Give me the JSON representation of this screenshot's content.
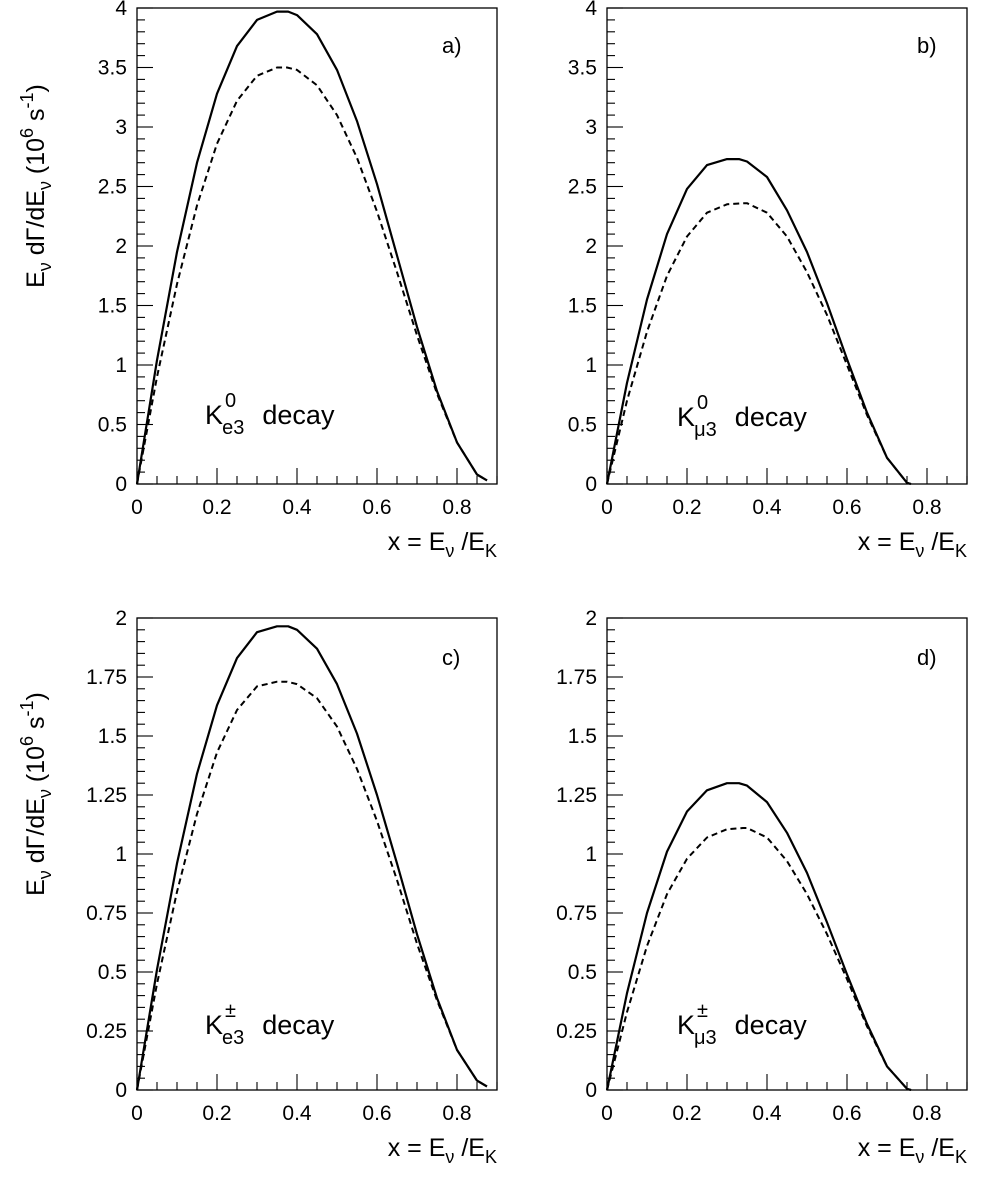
{
  "chart_data": [
    {
      "type": "line",
      "panel_label": "a)",
      "decay": {
        "particle": "K",
        "superscript": "0",
        "subscript": "e3",
        "word": "decay"
      },
      "xlabel": {
        "prefix": "x = E",
        "sub1": "ν",
        "middle": " /E",
        "sub2": "K"
      },
      "ylabel": {
        "prefix": "E",
        "sub1": "ν",
        "middle": " dΓ/dE",
        "sub2": "ν",
        "unit": "(10",
        "unit_sup": "6",
        "unit_mid": " s",
        "unit_sup2": "-1",
        "unit_end": ")"
      },
      "xlim": [
        0,
        0.9
      ],
      "ylim": [
        0,
        4
      ],
      "x_ticks": [
        "0",
        "0.2",
        "0.4",
        "0.6",
        "0.8"
      ],
      "y_ticks": [
        "0",
        "0.5",
        "1",
        "1.5",
        "2",
        "2.5",
        "3",
        "3.5",
        "4"
      ],
      "series": [
        {
          "style": "solid",
          "x": [
            0,
            0.05,
            0.1,
            0.15,
            0.2,
            0.25,
            0.3,
            0.35,
            0.378,
            0.4,
            0.45,
            0.5,
            0.55,
            0.6,
            0.65,
            0.7,
            0.75,
            0.8,
            0.85,
            0.875
          ],
          "y": [
            0,
            1.04,
            1.95,
            2.7,
            3.28,
            3.68,
            3.9,
            3.97,
            3.97,
            3.94,
            3.78,
            3.48,
            3.05,
            2.52,
            1.92,
            1.32,
            0.78,
            0.35,
            0.08,
            0.03
          ]
        },
        {
          "style": "dashed",
          "x": [
            0,
            0.05,
            0.1,
            0.15,
            0.2,
            0.25,
            0.3,
            0.35,
            0.375,
            0.4,
            0.45,
            0.5,
            0.55,
            0.6,
            0.65,
            0.7,
            0.75,
            0.8,
            0.85,
            0.875
          ],
          "y": [
            0,
            0.9,
            1.68,
            2.34,
            2.86,
            3.22,
            3.43,
            3.5,
            3.5,
            3.48,
            3.35,
            3.1,
            2.74,
            2.29,
            1.78,
            1.25,
            0.76,
            0.35,
            0.08,
            0.03
          ]
        }
      ]
    },
    {
      "type": "line",
      "panel_label": "b)",
      "decay": {
        "particle": "K",
        "superscript": "0",
        "subscript": "μ3",
        "word": "decay"
      },
      "xlabel": {
        "prefix": "x = E",
        "sub1": "ν",
        "middle": " /E",
        "sub2": "K"
      },
      "xlim": [
        0,
        0.9
      ],
      "ylim": [
        0,
        4
      ],
      "x_ticks": [
        "0",
        "0.2",
        "0.4",
        "0.6",
        "0.8"
      ],
      "y_ticks": [
        "0",
        "0.5",
        "1",
        "1.5",
        "2",
        "2.5",
        "3",
        "3.5",
        "4"
      ],
      "series": [
        {
          "style": "solid",
          "x": [
            0,
            0.05,
            0.1,
            0.15,
            0.2,
            0.25,
            0.3,
            0.33,
            0.35,
            0.4,
            0.45,
            0.5,
            0.55,
            0.6,
            0.65,
            0.7,
            0.75,
            0.76
          ],
          "y": [
            0,
            0.85,
            1.55,
            2.1,
            2.48,
            2.68,
            2.73,
            2.73,
            2.71,
            2.58,
            2.3,
            1.95,
            1.52,
            1.05,
            0.6,
            0.22,
            0.01,
            0
          ]
        },
        {
          "style": "dashed",
          "x": [
            0,
            0.05,
            0.1,
            0.15,
            0.2,
            0.25,
            0.3,
            0.34,
            0.35,
            0.4,
            0.45,
            0.5,
            0.55,
            0.6,
            0.65,
            0.7,
            0.75,
            0.76
          ],
          "y": [
            0,
            0.7,
            1.28,
            1.75,
            2.08,
            2.28,
            2.35,
            2.36,
            2.36,
            2.28,
            2.08,
            1.78,
            1.42,
            1.0,
            0.58,
            0.22,
            0.01,
            0
          ]
        }
      ]
    },
    {
      "type": "line",
      "panel_label": "c)",
      "decay": {
        "particle": "K",
        "superscript": "±",
        "subscript": "e3",
        "word": "decay"
      },
      "xlabel": {
        "prefix": "x = E",
        "sub1": "ν",
        "middle": " /E",
        "sub2": "K"
      },
      "ylabel": {
        "prefix": "E",
        "sub1": "ν",
        "middle": " dΓ/dE",
        "sub2": "ν",
        "unit": "(10",
        "unit_sup": "6",
        "unit_mid": " s",
        "unit_sup2": "-1",
        "unit_end": ")"
      },
      "xlim": [
        0,
        0.9
      ],
      "ylim": [
        0,
        2
      ],
      "x_ticks": [
        "0",
        "0.2",
        "0.4",
        "0.6",
        "0.8"
      ],
      "y_ticks": [
        "0",
        "0.25",
        "0.5",
        "0.75",
        "1",
        "1.25",
        "1.5",
        "1.75",
        "2"
      ],
      "series": [
        {
          "style": "solid",
          "x": [
            0,
            0.05,
            0.1,
            0.15,
            0.2,
            0.25,
            0.3,
            0.35,
            0.378,
            0.4,
            0.45,
            0.5,
            0.55,
            0.6,
            0.65,
            0.7,
            0.75,
            0.8,
            0.85,
            0.875
          ],
          "y": [
            0,
            0.51,
            0.96,
            1.34,
            1.63,
            1.83,
            1.94,
            1.965,
            1.965,
            1.95,
            1.87,
            1.72,
            1.51,
            1.25,
            0.96,
            0.66,
            0.39,
            0.17,
            0.04,
            0.015
          ]
        },
        {
          "style": "dashed",
          "x": [
            0,
            0.05,
            0.1,
            0.15,
            0.2,
            0.25,
            0.3,
            0.35,
            0.375,
            0.4,
            0.45,
            0.5,
            0.55,
            0.6,
            0.65,
            0.7,
            0.75,
            0.8,
            0.85,
            0.875
          ],
          "y": [
            0,
            0.45,
            0.84,
            1.17,
            1.43,
            1.61,
            1.71,
            1.73,
            1.73,
            1.72,
            1.66,
            1.54,
            1.36,
            1.14,
            0.89,
            0.62,
            0.38,
            0.17,
            0.04,
            0.015
          ]
        }
      ]
    },
    {
      "type": "line",
      "panel_label": "d)",
      "decay": {
        "particle": "K",
        "superscript": "±",
        "subscript": "μ3",
        "word": "decay"
      },
      "xlabel": {
        "prefix": "x = E",
        "sub1": "ν",
        "middle": " /E",
        "sub2": "K"
      },
      "xlim": [
        0,
        0.9
      ],
      "ylim": [
        0,
        2
      ],
      "x_ticks": [
        "0",
        "0.2",
        "0.4",
        "0.6",
        "0.8"
      ],
      "y_ticks": [
        "0",
        "0.25",
        "0.5",
        "0.75",
        "1",
        "1.25",
        "1.5",
        "1.75",
        "2"
      ],
      "series": [
        {
          "style": "solid",
          "x": [
            0,
            0.05,
            0.1,
            0.15,
            0.2,
            0.25,
            0.3,
            0.33,
            0.35,
            0.4,
            0.45,
            0.5,
            0.55,
            0.6,
            0.65,
            0.7,
            0.75,
            0.76
          ],
          "y": [
            0,
            0.41,
            0.75,
            1.01,
            1.18,
            1.27,
            1.3,
            1.3,
            1.29,
            1.22,
            1.09,
            0.92,
            0.71,
            0.49,
            0.28,
            0.1,
            0.005,
            0
          ]
        },
        {
          "style": "dashed",
          "x": [
            0,
            0.05,
            0.1,
            0.15,
            0.2,
            0.25,
            0.3,
            0.34,
            0.35,
            0.4,
            0.45,
            0.5,
            0.55,
            0.6,
            0.65,
            0.7,
            0.75,
            0.76
          ],
          "y": [
            0,
            0.33,
            0.61,
            0.83,
            0.98,
            1.07,
            1.105,
            1.11,
            1.11,
            1.07,
            0.97,
            0.83,
            0.66,
            0.47,
            0.27,
            0.1,
            0.005,
            0
          ]
        }
      ]
    }
  ]
}
